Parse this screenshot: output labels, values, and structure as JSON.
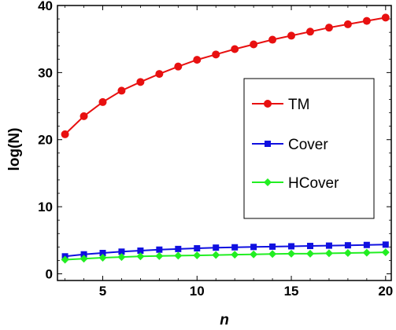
{
  "chart_data": {
    "type": "line",
    "title": "",
    "xlabel": "n",
    "ylabel": "log(N)",
    "xlim": [
      2.6,
      20.3
    ],
    "ylim": [
      -1,
      40
    ],
    "xticks": [
      5,
      10,
      15,
      20
    ],
    "yticks": [
      0,
      10,
      20,
      30,
      40
    ],
    "grid": false,
    "legend_position": "right",
    "x": [
      3,
      4,
      5,
      6,
      7,
      8,
      9,
      10,
      11,
      12,
      13,
      14,
      15,
      16,
      17,
      18,
      19,
      20
    ],
    "series": [
      {
        "name": "TM",
        "color": "#e81010",
        "marker": "circle",
        "values": [
          20.8,
          23.5,
          25.6,
          27.3,
          28.6,
          29.8,
          30.9,
          31.9,
          32.7,
          33.5,
          34.2,
          34.9,
          35.5,
          36.1,
          36.7,
          37.2,
          37.7,
          38.2
        ]
      },
      {
        "name": "Cover",
        "color": "#1010e0",
        "marker": "square",
        "values": [
          2.6,
          2.9,
          3.1,
          3.3,
          3.45,
          3.6,
          3.7,
          3.8,
          3.9,
          3.95,
          4.0,
          4.05,
          4.1,
          4.15,
          4.2,
          4.25,
          4.3,
          4.35
        ]
      },
      {
        "name": "HCover",
        "color": "#22ee22",
        "marker": "diamond",
        "values": [
          2.1,
          2.25,
          2.4,
          2.5,
          2.6,
          2.65,
          2.7,
          2.75,
          2.8,
          2.85,
          2.9,
          2.95,
          3.0,
          3.0,
          3.05,
          3.1,
          3.15,
          3.2
        ]
      }
    ]
  }
}
